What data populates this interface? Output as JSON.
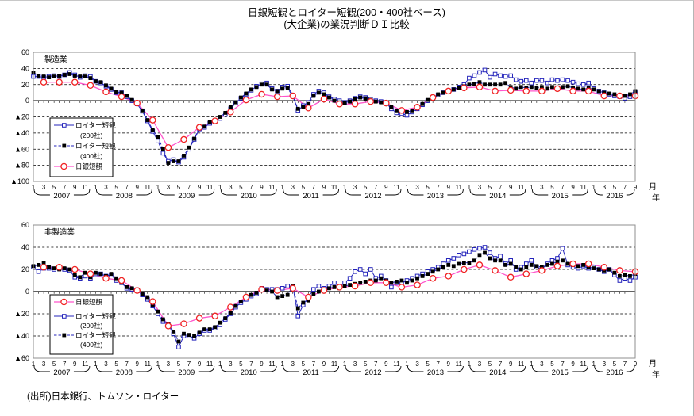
{
  "page": {
    "title_line1": "日銀短観とロイター短観(200・400社ベース)",
    "title_line2": "(大企業)の業況判断ＤＩ比較",
    "source": "(出所)日本銀行、トムソン・ロイター"
  },
  "colors": {
    "reuters_blue": "#2323bb",
    "marker_black": "#000000",
    "boj_line_pink": "#ff55cc",
    "boj_marker_red": "#f02222"
  },
  "chart_data": [
    {
      "type": "line",
      "label": "製造業",
      "ymin": -100,
      "ymax": 60,
      "ystep": 20,
      "neg_prefix": "▲",
      "start_year": 2007,
      "end_year": 2016,
      "end_month": 9,
      "month_ticks": [
        1,
        3,
        5,
        7,
        9,
        11
      ],
      "unit_month": "月",
      "unit_year": "年",
      "legend": {
        "order": [
          0,
          1,
          2
        ],
        "gap_after_first": false
      },
      "series": [
        {
          "key": "reuters-200",
          "name": "ロイター短観(200社)",
          "label1": "ロイター短観",
          "label2": "(200社)",
          "marker": "open-square",
          "line": "solid",
          "color": "#2323bb",
          "line_color": "#2323bb",
          "freq": "monthly",
          "values": [
            30,
            30,
            29,
            30,
            31,
            30,
            32,
            35,
            32,
            29,
            31,
            30,
            24,
            22,
            18,
            14,
            10,
            10,
            5,
            0,
            -4,
            -13,
            -25,
            -38,
            -50,
            -65,
            -75,
            -73,
            -76,
            -70,
            -60,
            -48,
            -35,
            -33,
            -28,
            -26,
            -22,
            -17,
            -10,
            -3,
            3,
            8,
            13,
            18,
            21,
            22,
            15,
            12,
            17,
            18,
            7,
            -12,
            -6,
            -2,
            8,
            12,
            10,
            5,
            2,
            0,
            -2,
            0,
            3,
            5,
            4,
            2,
            0,
            -1,
            -3,
            -10,
            -15,
            -16,
            -18,
            -14,
            -10,
            -5,
            0,
            4,
            7,
            10,
            12,
            14,
            17,
            20,
            28,
            31,
            35,
            38,
            29,
            33,
            31,
            30,
            31,
            26,
            24,
            25,
            22,
            25,
            25,
            22,
            26,
            25,
            26,
            25,
            23,
            21,
            20,
            22,
            15,
            12,
            10,
            8,
            6,
            5,
            3,
            5,
            10
          ]
        },
        {
          "key": "reuters-400",
          "name": "ロイター短観(400社)",
          "label1": "ロイター短観",
          "label2": "(400社)",
          "marker": "filled-square",
          "line": "dashed",
          "color": "#000000",
          "line_color": "#2323bb",
          "freq": "monthly",
          "values": [
            35,
            31,
            30,
            29,
            30,
            31,
            32,
            33,
            31,
            30,
            30,
            28,
            24,
            23,
            19,
            15,
            11,
            10,
            6,
            1,
            -3,
            -12,
            -24,
            -36,
            -45,
            -60,
            -77,
            -75,
            -75,
            -68,
            -58,
            -47,
            -34,
            -32,
            -26,
            -25,
            -20,
            -15,
            -8,
            -2,
            4,
            9,
            14,
            17,
            20,
            20,
            14,
            12,
            15,
            16,
            5,
            -10,
            -8,
            -4,
            6,
            10,
            8,
            4,
            0,
            -2,
            -3,
            -1,
            2,
            4,
            3,
            1,
            -1,
            -2,
            -4,
            -8,
            -12,
            -13,
            -14,
            -12,
            -8,
            -4,
            1,
            5,
            8,
            10,
            12,
            14,
            16,
            18,
            20,
            21,
            23,
            20,
            20,
            20,
            20,
            22,
            17,
            15,
            17,
            16,
            17,
            16,
            17,
            15,
            17,
            16,
            17,
            18,
            16,
            15,
            14,
            16,
            14,
            12,
            10,
            9,
            8,
            6,
            6,
            8,
            12
          ]
        },
        {
          "key": "boj-tankan",
          "name": "日銀短観",
          "label1": "日銀短観",
          "label2": null,
          "marker": "open-circle",
          "line": "solid",
          "color": "#f02222",
          "line_color": "#ff55cc",
          "freq": "quarterly",
          "values": [
            23,
            23,
            23,
            19,
            11,
            5,
            -3,
            -24,
            -58,
            -48,
            -33,
            -25,
            -14,
            1,
            8,
            5,
            6,
            -9,
            2,
            -4,
            -4,
            -1,
            -3,
            -12,
            -8,
            4,
            12,
            16,
            17,
            12,
            13,
            12,
            12,
            15,
            12,
            12,
            6,
            6,
            6
          ]
        }
      ]
    },
    {
      "type": "line",
      "label": "非製造業",
      "ymin": -60,
      "ymax": 60,
      "ystep": 20,
      "neg_prefix": "▲",
      "start_year": 2007,
      "end_year": 2016,
      "end_month": 9,
      "month_ticks": [
        1,
        3,
        5,
        7,
        9,
        11
      ],
      "unit_month": "月",
      "unit_year": "年",
      "legend": {
        "order": [
          2,
          0,
          1
        ],
        "gap_after_first": true
      },
      "series": [
        {
          "key": "reuters-200",
          "name": "ロイター短観(200社)",
          "label1": "ロイター短観",
          "label2": "(200社)",
          "marker": "open-square",
          "line": "solid",
          "color": "#2323bb",
          "line_color": "#2323bb",
          "freq": "monthly",
          "values": [
            22,
            18,
            21,
            21,
            20,
            21,
            20,
            19,
            13,
            12,
            14,
            12,
            16,
            16,
            14,
            15,
            10,
            8,
            3,
            2,
            1,
            -3,
            -7,
            -13,
            -20,
            -27,
            -30,
            -38,
            -50,
            -40,
            -40,
            -42,
            -38,
            -35,
            -35,
            -33,
            -30,
            -25,
            -20,
            -14,
            -10,
            -7,
            -4,
            -2,
            3,
            2,
            2,
            2,
            3,
            5,
            5,
            -22,
            -12,
            -5,
            2,
            5,
            3,
            5,
            8,
            5,
            8,
            12,
            18,
            20,
            16,
            20,
            12,
            14,
            10,
            4,
            8,
            8,
            10,
            12,
            14,
            16,
            18,
            20,
            22,
            25,
            28,
            30,
            33,
            34,
            36,
            38,
            39,
            40,
            35,
            30,
            32,
            25,
            28,
            20,
            22,
            25,
            28,
            22,
            20,
            25,
            28,
            30,
            39,
            24,
            22,
            21,
            23,
            21,
            22,
            20,
            18,
            20,
            15,
            10,
            12,
            10,
            13
          ]
        },
        {
          "key": "reuters-400",
          "name": "ロイター短観(400社)",
          "label1": "ロイター短観",
          "label2": "(400社)",
          "marker": "filled-square",
          "line": "dashed",
          "color": "#000000",
          "line_color": "#2323bb",
          "freq": "monthly",
          "values": [
            23,
            24,
            26,
            22,
            21,
            20,
            21,
            20,
            15,
            13,
            17,
            13,
            17,
            16,
            14,
            16,
            12,
            8,
            4,
            3,
            2,
            -2,
            -5,
            -12,
            -18,
            -25,
            -29,
            -36,
            -45,
            -38,
            -39,
            -40,
            -37,
            -34,
            -34,
            -32,
            -28,
            -24,
            -19,
            -13,
            -9,
            -6,
            -3,
            -1,
            2,
            1,
            0,
            -5,
            -4,
            -3,
            5,
            -15,
            -10,
            -8,
            -2,
            0,
            2,
            3,
            4,
            3,
            5,
            6,
            7,
            8,
            9,
            10,
            10,
            12,
            10,
            8,
            9,
            10,
            8,
            10,
            12,
            14,
            16,
            18,
            20,
            22,
            24,
            23,
            25,
            26,
            26,
            28,
            33,
            35,
            30,
            28,
            28,
            24,
            25,
            22,
            20,
            22,
            24,
            23,
            22,
            24,
            25,
            27,
            28,
            25,
            24,
            23,
            24,
            22,
            21,
            20,
            19,
            20,
            17,
            14,
            15,
            14,
            16
          ]
        },
        {
          "key": "boj-tankan",
          "name": "日銀短観",
          "label1": "日銀短観",
          "label2": null,
          "marker": "open-circle",
          "line": "solid",
          "color": "#f02222",
          "line_color": "#ff55cc",
          "freq": "quarterly",
          "values": [
            22,
            22,
            20,
            16,
            12,
            10,
            1,
            -9,
            -31,
            -29,
            -24,
            -22,
            -14,
            -5,
            2,
            1,
            3,
            -5,
            1,
            4,
            5,
            8,
            8,
            4,
            6,
            12,
            14,
            20,
            24,
            19,
            13,
            16,
            19,
            23,
            25,
            25,
            22,
            19,
            18
          ]
        }
      ]
    }
  ]
}
